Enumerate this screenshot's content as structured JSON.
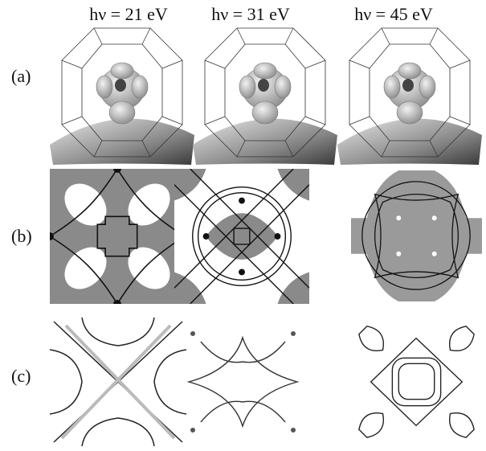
{
  "columns": [
    {
      "header": "hν = 21 eV"
    },
    {
      "header": "hν = 31 eV"
    },
    {
      "header": "hν = 45 eV"
    }
  ],
  "rows": [
    {
      "label": "(a)"
    },
    {
      "label": "(b)"
    },
    {
      "label": "(c)"
    }
  ]
}
